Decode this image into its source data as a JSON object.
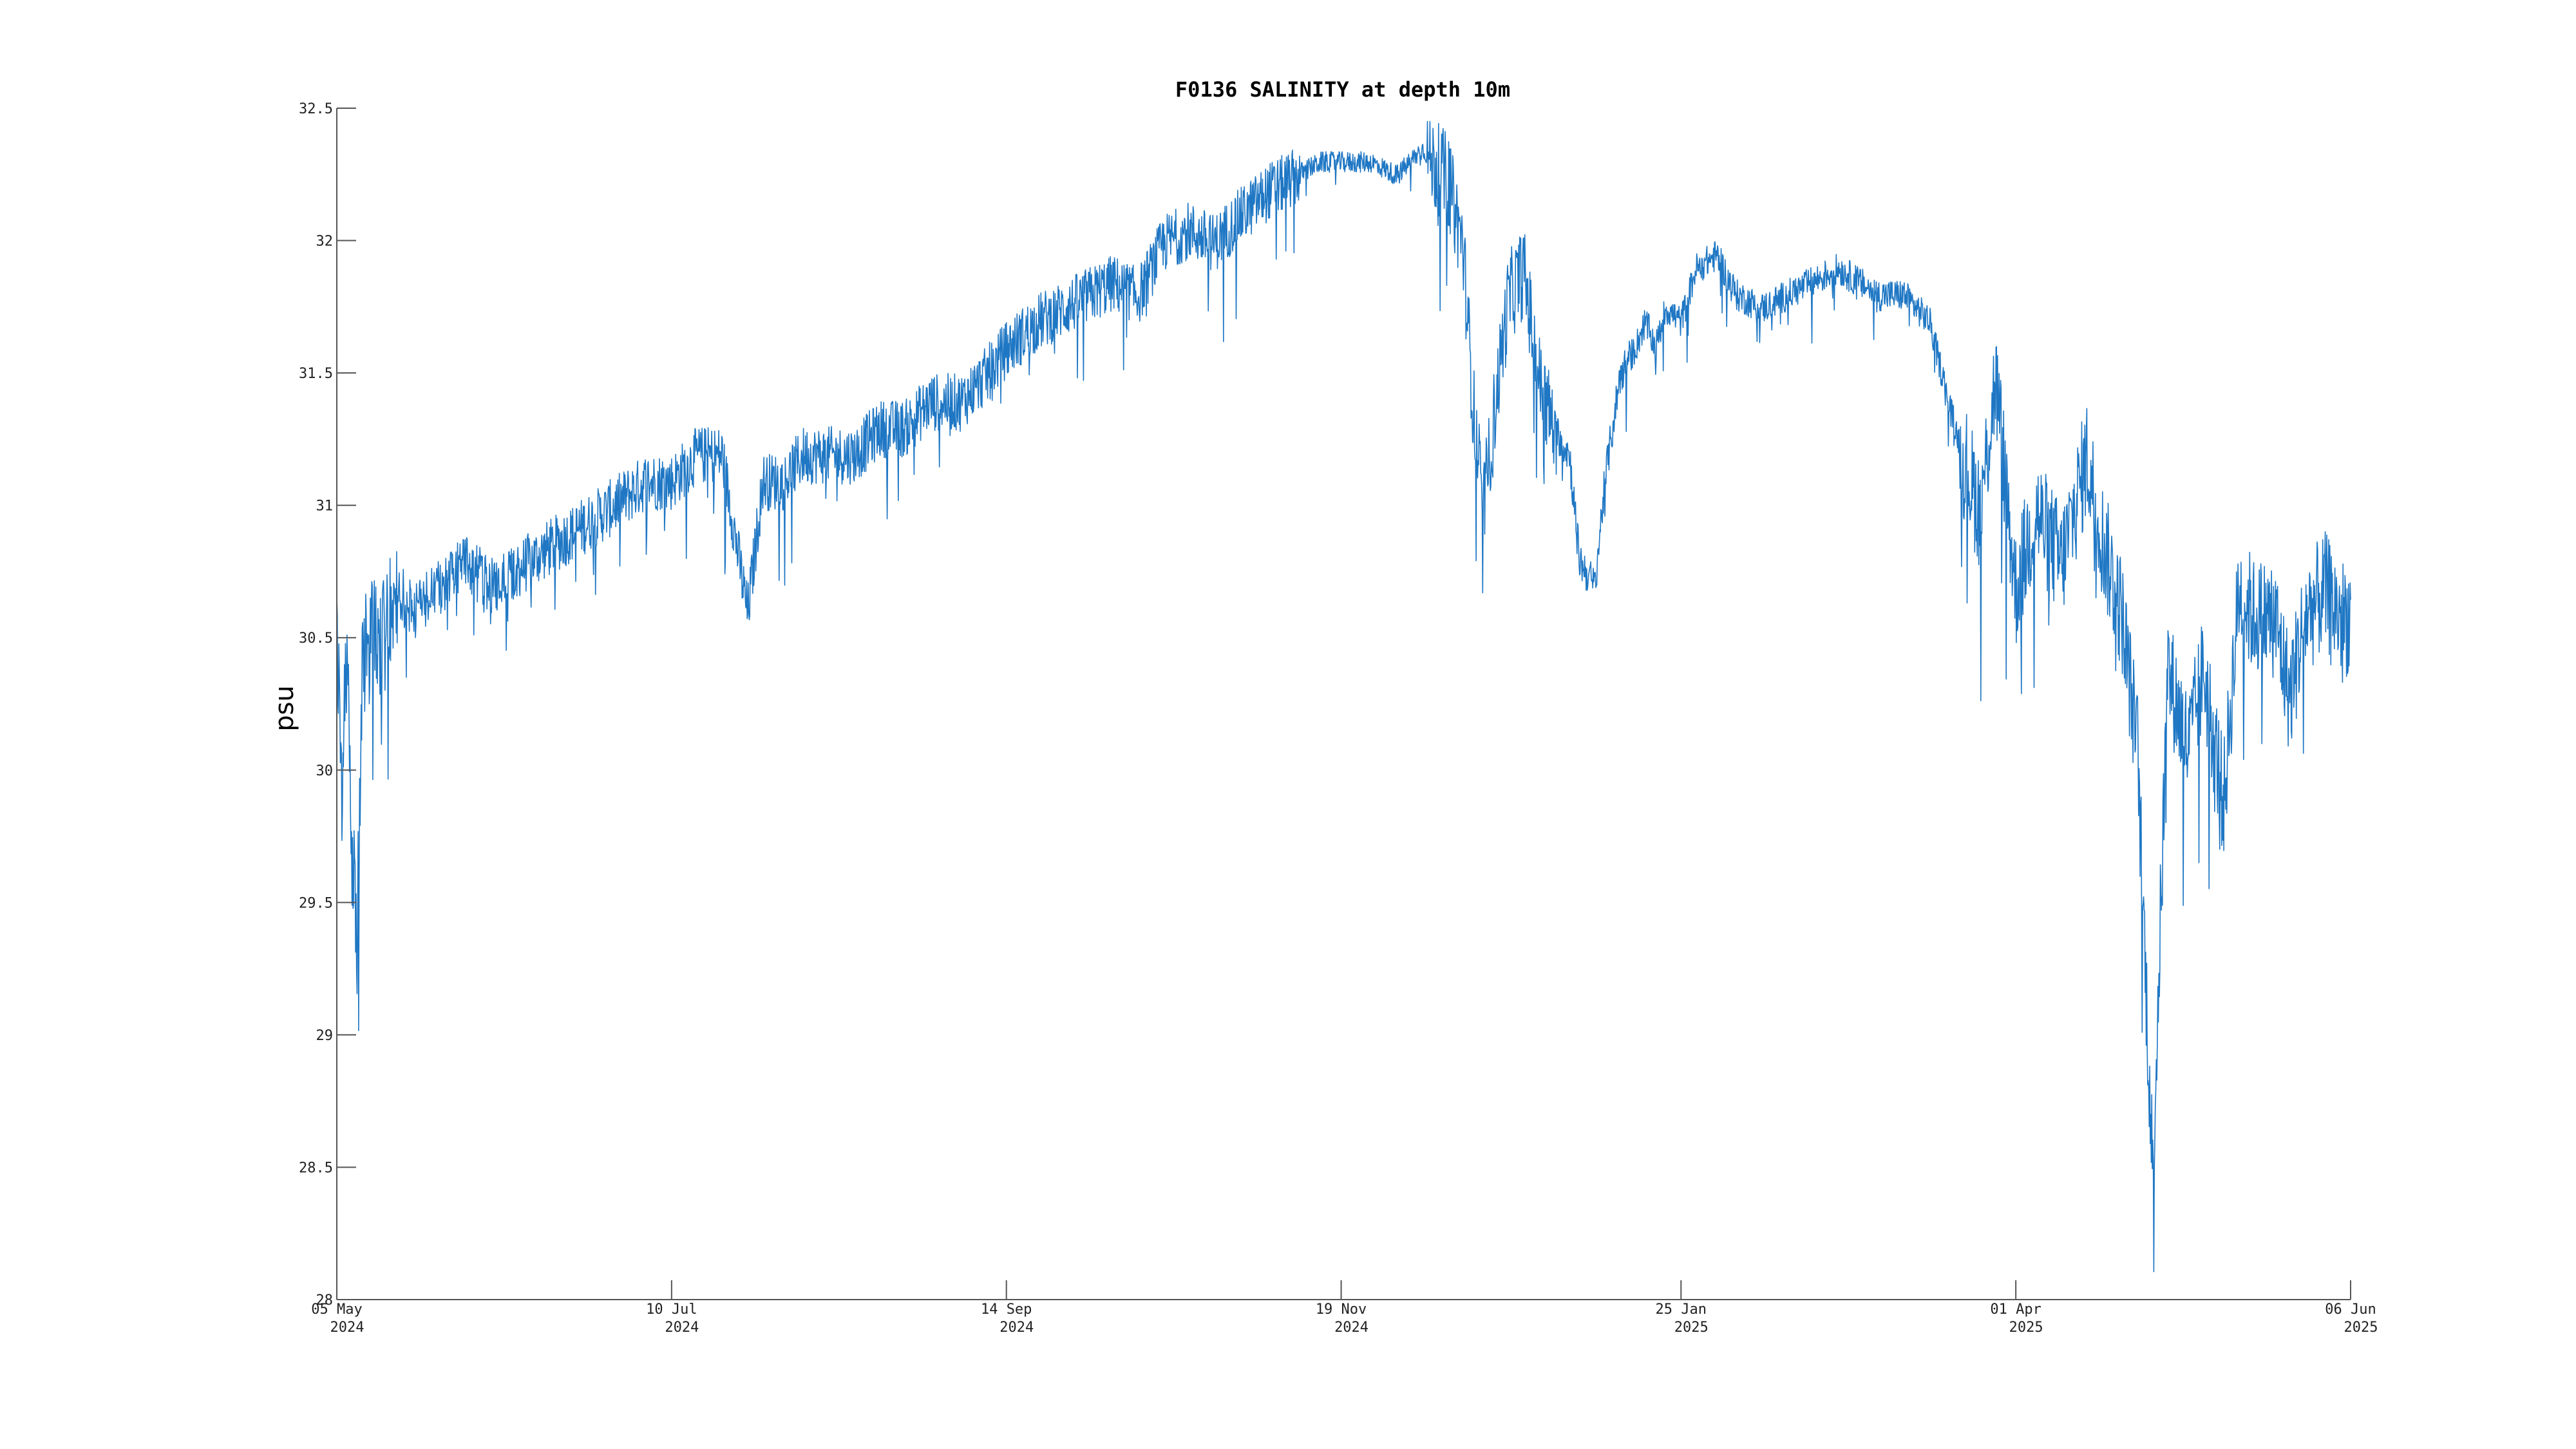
{
  "chart_data": {
    "type": "line",
    "title": "F0136 SALINITY at depth 10m",
    "xlabel": "",
    "ylabel": "psu",
    "xlim": [
      "2024-05-05",
      "2025-06-06"
    ],
    "ylim": [
      28,
      32.5
    ],
    "grid": false,
    "y_ticks": [
      "28",
      "28.5",
      "29",
      "29.5",
      "30",
      "30.5",
      "31",
      "31.5",
      "32",
      "32.5"
    ],
    "x_ticks": [
      {
        "date": "2024-05-05",
        "line1": "05 May",
        "line2": "2024"
      },
      {
        "date": "2024-07-10",
        "line1": "10 Jul",
        "line2": "2024"
      },
      {
        "date": "2024-09-14",
        "line1": "14 Sep",
        "line2": "2024"
      },
      {
        "date": "2024-11-19",
        "line1": "19 Nov",
        "line2": "2024"
      },
      {
        "date": "2025-01-25",
        "line1": "25 Jan",
        "line2": "2025"
      },
      {
        "date": "2025-04-01",
        "line1": "01 Apr",
        "line2": "2025"
      },
      {
        "date": "2025-06-06",
        "line1": "06 Jun",
        "line2": "2025"
      }
    ],
    "colors": {
      "series": "#1f77c4",
      "axis": "#555555"
    },
    "series": [
      {
        "x": [
          "2024-05-05",
          "2024-05-06",
          "2024-05-07",
          "2024-05-08",
          "2024-05-09",
          "2024-05-10",
          "2024-05-12",
          "2024-05-14",
          "2024-05-17",
          "2024-05-20",
          "2024-05-25",
          "2024-05-30",
          "2024-06-05",
          "2024-06-12",
          "2024-06-20",
          "2024-06-28",
          "2024-07-05",
          "2024-07-10",
          "2024-07-15",
          "2024-07-20",
          "2024-07-25",
          "2024-07-28",
          "2024-08-01",
          "2024-08-05",
          "2024-08-10",
          "2024-08-15",
          "2024-08-20",
          "2024-08-25",
          "2024-08-30",
          "2024-09-05",
          "2024-09-10",
          "2024-09-14",
          "2024-09-20",
          "2024-09-25",
          "2024-09-30",
          "2024-10-05",
          "2024-10-10",
          "2024-10-15",
          "2024-10-20",
          "2024-10-25",
          "2024-10-30",
          "2024-11-05",
          "2024-11-10",
          "2024-11-15",
          "2024-11-19",
          "2024-11-25",
          "2024-11-30",
          "2024-12-05",
          "2024-12-10",
          "2024-12-13",
          "2024-12-15",
          "2024-12-17",
          "2024-12-20",
          "2024-12-22",
          "2024-12-25",
          "2024-12-28",
          "2024-12-31",
          "2025-01-03",
          "2025-01-05",
          "2025-01-08",
          "2025-01-10",
          "2025-01-13",
          "2025-01-16",
          "2025-01-18",
          "2025-01-20",
          "2025-01-22",
          "2025-01-25",
          "2025-01-28",
          "2025-02-01",
          "2025-02-05",
          "2025-02-10",
          "2025-02-15",
          "2025-02-20",
          "2025-02-25",
          "2025-03-01",
          "2025-03-05",
          "2025-03-10",
          "2025-03-15",
          "2025-03-20",
          "2025-03-25",
          "2025-03-28",
          "2025-04-01",
          "2025-04-05",
          "2025-04-10",
          "2025-04-15",
          "2025-04-18",
          "2025-04-22",
          "2025-04-25",
          "2025-04-28",
          "2025-05-01",
          "2025-05-05",
          "2025-05-08",
          "2025-05-12",
          "2025-05-15",
          "2025-05-18",
          "2025-05-22",
          "2025-05-25",
          "2025-05-28",
          "2025-06-01",
          "2025-06-04",
          "2025-06-06"
        ],
        "y": [
          30.5,
          30.0,
          30.5,
          29.7,
          29.4,
          30.4,
          30.6,
          30.5,
          30.7,
          30.6,
          30.7,
          30.8,
          30.7,
          30.8,
          30.9,
          31.0,
          31.1,
          31.1,
          31.2,
          31.2,
          30.6,
          31.1,
          31.1,
          31.2,
          31.2,
          31.2,
          31.3,
          31.3,
          31.4,
          31.4,
          31.5,
          31.6,
          31.7,
          31.75,
          31.8,
          31.85,
          31.8,
          32.0,
          32.05,
          32.0,
          32.1,
          32.2,
          32.25,
          32.3,
          32.3,
          32.3,
          32.25,
          32.35,
          32.25,
          32.0,
          31.4,
          31.0,
          31.5,
          31.8,
          31.9,
          31.5,
          31.3,
          31.2,
          30.8,
          30.7,
          31.1,
          31.5,
          31.6,
          31.7,
          31.6,
          31.75,
          31.7,
          31.9,
          31.95,
          31.8,
          31.75,
          31.8,
          31.85,
          31.9,
          31.85,
          31.8,
          31.8,
          31.7,
          31.3,
          31.0,
          31.5,
          30.7,
          31.0,
          30.8,
          31.2,
          30.9,
          30.6,
          30.1,
          28.5,
          30.4,
          30.1,
          30.4,
          29.9,
          30.7,
          30.6,
          30.6,
          30.3,
          30.6,
          30.7,
          30.6,
          30.6
        ]
      }
    ]
  }
}
